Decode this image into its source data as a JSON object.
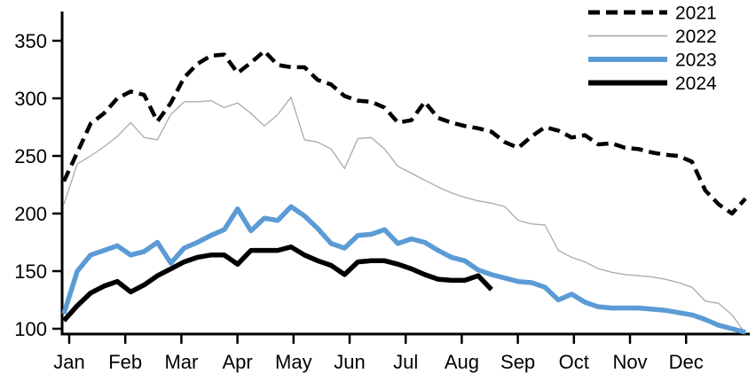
{
  "chart_data": {
    "type": "line",
    "title": "",
    "xlabel": "",
    "ylabel": "",
    "frequency": "weekly",
    "grid": false,
    "legend_position": "top-right",
    "x_axis": {
      "tick_labels": [
        "Jan",
        "Feb",
        "Mar",
        "Apr",
        "May",
        "Jun",
        "Jul",
        "Aug",
        "Sep",
        "Oct",
        "Nov",
        "Dec"
      ]
    },
    "y_axis": {
      "ticks": [
        100,
        150,
        200,
        250,
        300,
        350
      ],
      "min": 100,
      "max": 350
    },
    "colors": {
      "black": "#000000",
      "gray": "#aaaaaa",
      "blue": "#5b9bd5"
    },
    "series": [
      {
        "name": "2021",
        "color": "#000000",
        "line_style": "dashed",
        "values": [
          228,
          253,
          278,
          287,
          300,
          306,
          303,
          280,
          296,
          318,
          330,
          337,
          338,
          322,
          331,
          341,
          329,
          327,
          327,
          316,
          312,
          302,
          298,
          297,
          292,
          279,
          281,
          297,
          283,
          279,
          276,
          274,
          271,
          262,
          257,
          267,
          275,
          272,
          266,
          268,
          260,
          261,
          257,
          256,
          253,
          251,
          250,
          245,
          220,
          208,
          200,
          213
        ]
      },
      {
        "name": "2022",
        "color": "#aaaaaa",
        "line_style": "thin-solid",
        "values": [
          208,
          243,
          250,
          258,
          267,
          279,
          266,
          264,
          286,
          297,
          297,
          298,
          292,
          296,
          287,
          276,
          286,
          301,
          264,
          262,
          256,
          239,
          265,
          266,
          256,
          241,
          235,
          229,
          223,
          218,
          214,
          211,
          209,
          206,
          194,
          191,
          190,
          168,
          162,
          158,
          152,
          149,
          147,
          146,
          145,
          143,
          140,
          136,
          124,
          122,
          112,
          96
        ]
      },
      {
        "name": "2023",
        "color": "#5b9bd5",
        "line_style": "thick-solid",
        "values": [
          113,
          150,
          164,
          168,
          172,
          164,
          167,
          175,
          157,
          170,
          175,
          181,
          186,
          204,
          185,
          196,
          194,
          206,
          198,
          187,
          174,
          170,
          181,
          182,
          186,
          174,
          178,
          175,
          168,
          162,
          159,
          151,
          147,
          144,
          141,
          140,
          136,
          125,
          130,
          123,
          119,
          118,
          118,
          118,
          117,
          116,
          114,
          112,
          108,
          103,
          100,
          97
        ]
      },
      {
        "name": "2024",
        "color": "#000000",
        "line_style": "thick-solid",
        "values": [
          107,
          120,
          131,
          137,
          141,
          132,
          138,
          146,
          152,
          158,
          162,
          164,
          164,
          156,
          168,
          168,
          168,
          171,
          164,
          159,
          155,
          147,
          158,
          159,
          159,
          156,
          152,
          147,
          143,
          142,
          142,
          146,
          134
        ]
      }
    ]
  }
}
